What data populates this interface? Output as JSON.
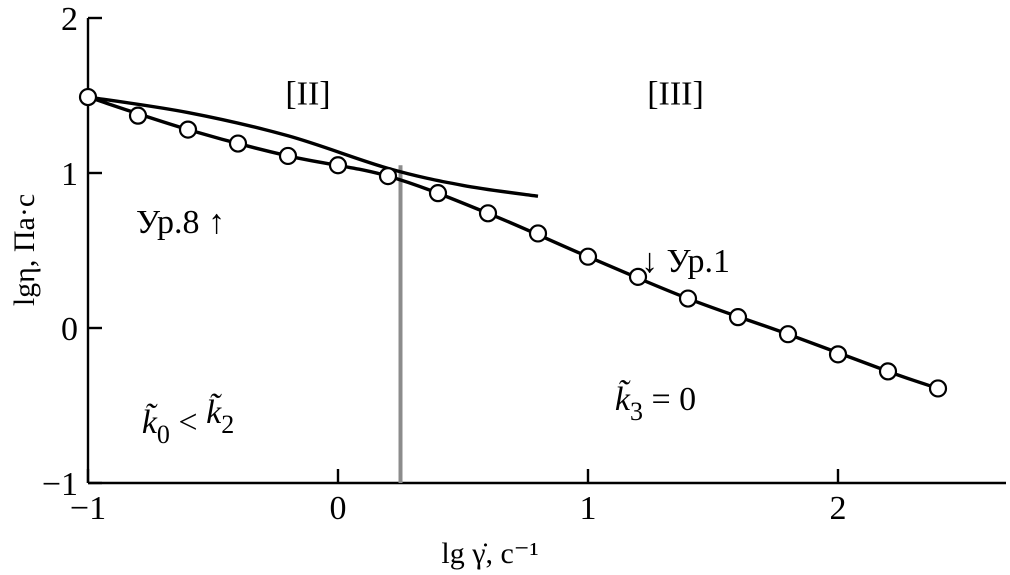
{
  "chart_data": {
    "type": "scatter",
    "xlabel": "lg γ̇, с⁻¹",
    "ylabel": "lgη, Па·с",
    "xlim": [
      -1,
      2.7
    ],
    "ylim": [
      -1,
      2.1
    ],
    "xticks": [
      -1,
      0,
      1,
      2
    ],
    "yticks": [
      -1,
      0,
      1,
      2
    ],
    "xtick_labels": [
      "−1",
      "0",
      "1",
      "2"
    ],
    "ytick_labels": [
      "−1",
      "0",
      "1",
      "2"
    ],
    "grid": false,
    "points": {
      "x": [
        -1.0,
        -0.8,
        -0.6,
        -0.4,
        -0.2,
        0.0,
        0.2,
        0.4,
        0.6,
        0.8,
        1.0,
        1.2,
        1.4,
        1.6,
        1.8,
        2.0,
        2.2,
        2.4
      ],
      "y": [
        1.49,
        1.37,
        1.28,
        1.19,
        1.11,
        1.05,
        0.98,
        0.87,
        0.74,
        0.61,
        0.46,
        0.33,
        0.19,
        0.07,
        -0.04,
        -0.17,
        -0.28,
        -0.39
      ]
    },
    "curves": [
      {
        "label": "Ур.1",
        "x": [
          -1.0,
          -0.6,
          -0.2,
          0.2,
          0.6,
          1.0,
          1.4,
          1.8,
          2.2,
          2.4
        ],
        "y": [
          1.49,
          1.28,
          1.11,
          0.98,
          0.74,
          0.46,
          0.19,
          -0.04,
          -0.28,
          -0.39
        ]
      },
      {
        "label": "Ур.8",
        "x": [
          -1.0,
          -0.6,
          -0.2,
          0.2,
          0.5,
          0.8
        ],
        "y": [
          1.49,
          1.39,
          1.24,
          1.03,
          0.92,
          0.85
        ]
      }
    ],
    "boundary_x": 0.25,
    "boundary_y": [
      -1,
      1.05
    ],
    "region_labels": [
      {
        "text": "[II]",
        "x": -0.12,
        "y": 1.52
      },
      {
        "text": "[III]",
        "x": 1.35,
        "y": 1.52
      }
    ],
    "curve_labels": [
      {
        "text": "Ур.8 ↑",
        "x": -0.63,
        "y": 0.69
      },
      {
        "text": "↓ Ур.1",
        "x": 1.39,
        "y": 0.44
      }
    ],
    "conditions": [
      {
        "x": -0.6,
        "y": -0.6,
        "parts": [
          [
            "k̃",
            "it"
          ],
          [
            "0",
            "sub"
          ],
          [
            " < ",
            "n"
          ],
          [
            "k̃",
            "it"
          ],
          [
            "2",
            "sub"
          ]
        ]
      },
      {
        "x": 1.27,
        "y": -0.45,
        "parts": [
          [
            "k̃",
            "it"
          ],
          [
            "3",
            "sub"
          ],
          [
            " = 0",
            "n"
          ]
        ]
      }
    ]
  }
}
